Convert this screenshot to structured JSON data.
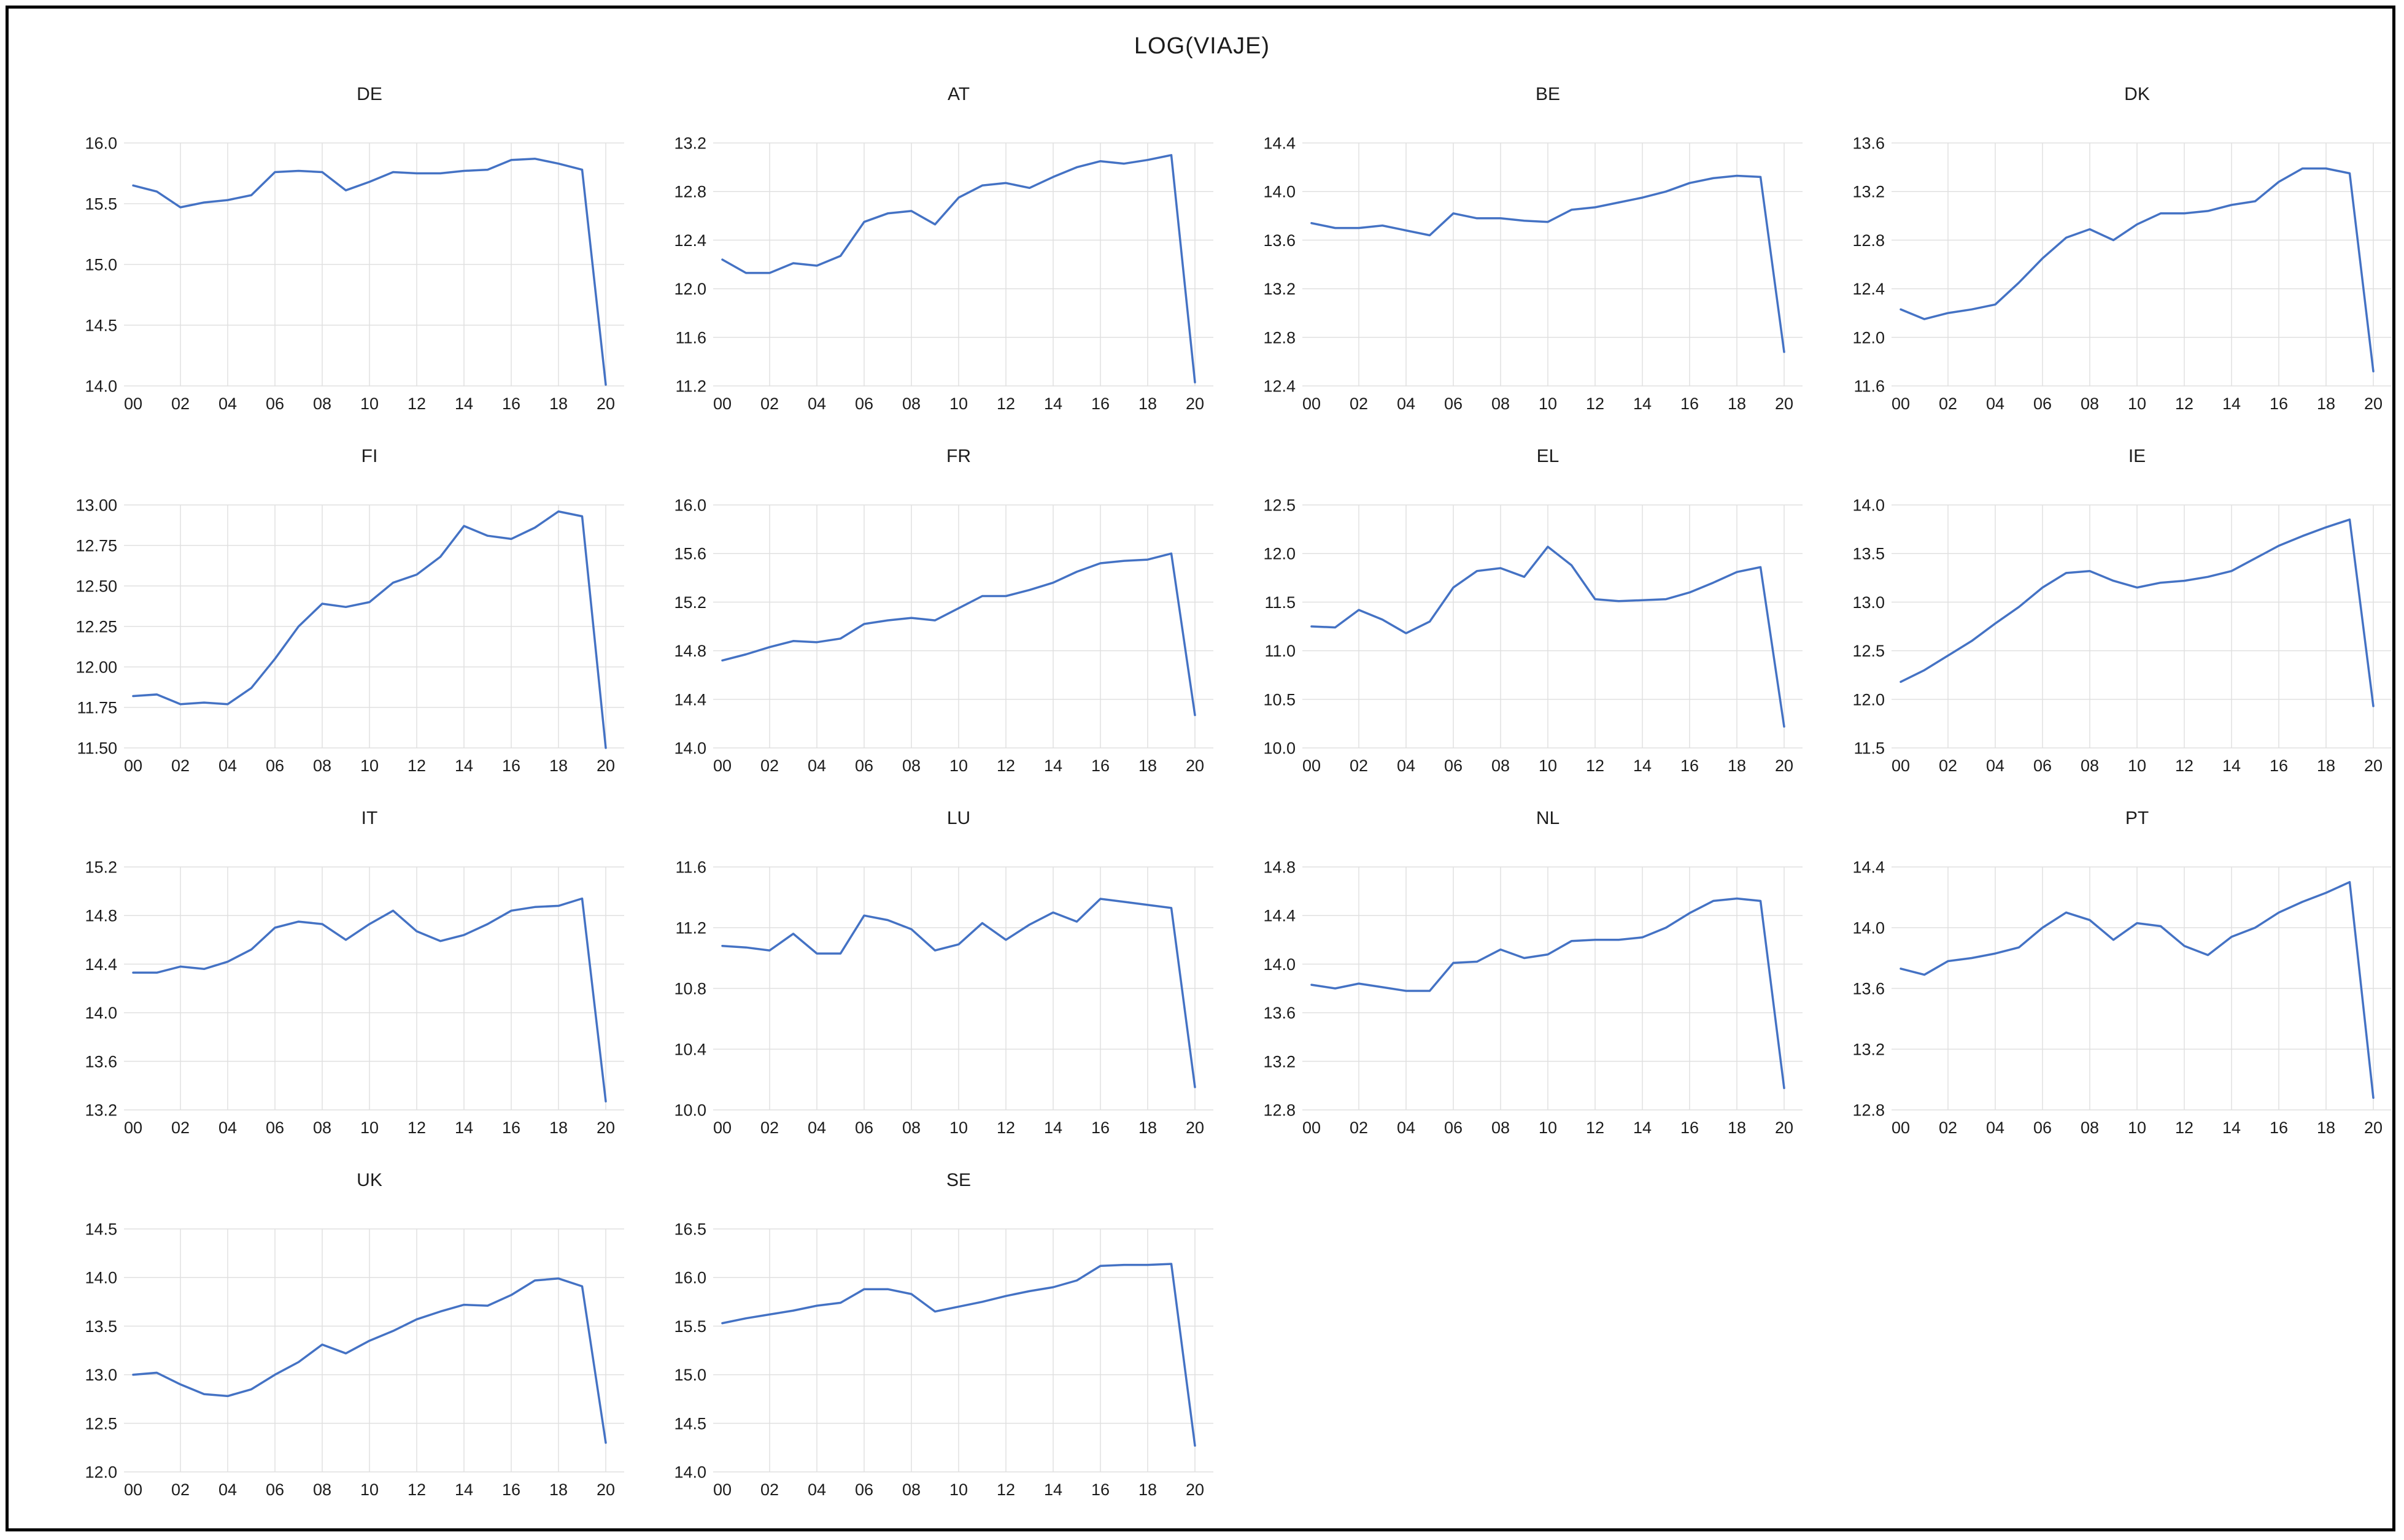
{
  "figure": {
    "title": "LOG(VIAJE)"
  },
  "colors": {
    "line": "#4472c4",
    "grid": "#e0e0e0",
    "text": "#1c1c1c",
    "background": "#ffffff",
    "border": "#000000"
  },
  "x_tick_labels": [
    "00",
    "02",
    "04",
    "06",
    "08",
    "10",
    "12",
    "14",
    "16",
    "18",
    "20"
  ],
  "chart_data": [
    {
      "type": "line",
      "title": "DE",
      "ylim": [
        14.0,
        16.0
      ],
      "yticks": [
        16.0,
        15.5,
        15.0,
        14.5,
        14.0
      ],
      "ytick_labels": [
        "16.0",
        "15.5",
        "15.0",
        "14.5",
        "14.0"
      ],
      "x_start_year": 2000,
      "x_end_year": 2020,
      "values": [
        15.65,
        15.6,
        15.47,
        15.51,
        15.53,
        15.57,
        15.76,
        15.77,
        15.76,
        15.61,
        15.68,
        15.76,
        15.75,
        15.75,
        15.77,
        15.78,
        15.86,
        15.87,
        15.83,
        15.78,
        14.01
      ]
    },
    {
      "type": "line",
      "title": "AT",
      "ylim": [
        11.2,
        13.2
      ],
      "yticks": [
        13.2,
        12.8,
        12.4,
        12.0,
        11.6,
        11.2
      ],
      "ytick_labels": [
        "13.2",
        "12.8",
        "12.4",
        "12.0",
        "11.6",
        "11.2"
      ],
      "x_start_year": 2000,
      "x_end_year": 2020,
      "values": [
        12.24,
        12.13,
        12.13,
        12.21,
        12.19,
        12.27,
        12.55,
        12.62,
        12.64,
        12.53,
        12.75,
        12.85,
        12.87,
        12.83,
        12.92,
        13.0,
        13.05,
        13.03,
        13.06,
        13.1,
        11.23
      ]
    },
    {
      "type": "line",
      "title": "BE",
      "ylim": [
        12.4,
        14.4
      ],
      "yticks": [
        14.4,
        14.0,
        13.6,
        13.2,
        12.8,
        12.4
      ],
      "ytick_labels": [
        "14.4",
        "14.0",
        "13.6",
        "13.2",
        "12.8",
        "12.4"
      ],
      "x_start_year": 2000,
      "x_end_year": 2020,
      "values": [
        13.74,
        13.7,
        13.7,
        13.72,
        13.68,
        13.64,
        13.82,
        13.78,
        13.78,
        13.76,
        13.75,
        13.85,
        13.87,
        13.91,
        13.95,
        14.0,
        14.07,
        14.11,
        14.13,
        14.12,
        12.68
      ]
    },
    {
      "type": "line",
      "title": "DK",
      "ylim": [
        11.6,
        13.6
      ],
      "yticks": [
        13.6,
        13.2,
        12.8,
        12.4,
        12.0,
        11.6
      ],
      "ytick_labels": [
        "13.6",
        "13.2",
        "12.8",
        "12.4",
        "12.0",
        "11.6"
      ],
      "x_start_year": 2000,
      "x_end_year": 2020,
      "values": [
        12.23,
        12.15,
        12.2,
        12.23,
        12.27,
        12.45,
        12.65,
        12.82,
        12.89,
        12.8,
        12.93,
        13.02,
        13.02,
        13.04,
        13.09,
        13.12,
        13.28,
        13.39,
        13.39,
        13.35,
        11.72
      ]
    },
    {
      "type": "line",
      "title": "FI",
      "ylim": [
        11.5,
        13.0
      ],
      "yticks": [
        13.0,
        12.75,
        12.5,
        12.25,
        12.0,
        11.75,
        11.5
      ],
      "ytick_labels": [
        "13.00",
        "12.75",
        "12.50",
        "12.25",
        "12.00",
        "11.75",
        "11.50"
      ],
      "x_start_year": 2000,
      "x_end_year": 2020,
      "values": [
        11.82,
        11.83,
        11.77,
        11.78,
        11.77,
        11.87,
        12.05,
        12.25,
        12.39,
        12.37,
        12.4,
        12.52,
        12.57,
        12.68,
        12.87,
        12.81,
        12.79,
        12.86,
        12.96,
        12.93,
        11.5
      ]
    },
    {
      "type": "line",
      "title": "FR",
      "ylim": [
        14.0,
        16.0
      ],
      "yticks": [
        16.0,
        15.6,
        15.2,
        14.8,
        14.4,
        14.0
      ],
      "ytick_labels": [
        "16.0",
        "15.6",
        "15.2",
        "14.8",
        "14.4",
        "14.0"
      ],
      "x_start_year": 2000,
      "x_end_year": 2020,
      "values": [
        14.72,
        14.77,
        14.83,
        14.88,
        14.87,
        14.9,
        15.02,
        15.05,
        15.07,
        15.05,
        15.15,
        15.25,
        15.25,
        15.3,
        15.36,
        15.45,
        15.52,
        15.54,
        15.55,
        15.6,
        14.27
      ]
    },
    {
      "type": "line",
      "title": "EL",
      "ylim": [
        10.0,
        12.5
      ],
      "yticks": [
        12.5,
        12.0,
        11.5,
        11.0,
        10.5,
        10.0
      ],
      "ytick_labels": [
        "12.5",
        "12.0",
        "11.5",
        "11.0",
        "10.5",
        "10.0"
      ],
      "x_start_year": 2000,
      "x_end_year": 2020,
      "values": [
        11.25,
        11.24,
        11.42,
        11.32,
        11.18,
        11.3,
        11.65,
        11.82,
        11.85,
        11.76,
        12.07,
        11.88,
        11.53,
        11.51,
        11.52,
        11.53,
        11.6,
        11.7,
        11.81,
        11.86,
        10.22
      ]
    },
    {
      "type": "line",
      "title": "IE",
      "ylim": [
        11.5,
        14.0
      ],
      "yticks": [
        14.0,
        13.5,
        13.0,
        12.5,
        12.0,
        11.5
      ],
      "ytick_labels": [
        "14.0",
        "13.5",
        "13.0",
        "12.5",
        "12.0",
        "11.5"
      ],
      "x_start_year": 2000,
      "x_end_year": 2020,
      "values": [
        12.18,
        12.3,
        12.45,
        12.6,
        12.78,
        12.95,
        13.15,
        13.3,
        13.32,
        13.22,
        13.15,
        13.2,
        13.22,
        13.26,
        13.32,
        13.45,
        13.58,
        13.68,
        13.77,
        13.85,
        11.93
      ]
    },
    {
      "type": "line",
      "title": "IT",
      "ylim": [
        13.2,
        15.2
      ],
      "yticks": [
        15.2,
        14.8,
        14.4,
        14.0,
        13.6,
        13.2
      ],
      "ytick_labels": [
        "15.2",
        "14.8",
        "14.4",
        "14.0",
        "13.6",
        "13.2"
      ],
      "x_start_year": 2000,
      "x_end_year": 2020,
      "values": [
        14.33,
        14.33,
        14.38,
        14.36,
        14.42,
        14.52,
        14.7,
        14.75,
        14.73,
        14.6,
        14.73,
        14.84,
        14.67,
        14.59,
        14.64,
        14.73,
        14.84,
        14.87,
        14.88,
        14.94,
        13.27
      ]
    },
    {
      "type": "line",
      "title": "LU",
      "ylim": [
        10.0,
        11.6
      ],
      "yticks": [
        11.6,
        11.2,
        10.8,
        10.4,
        10.0
      ],
      "ytick_labels": [
        "11.6",
        "11.2",
        "10.8",
        "10.4",
        "10.0"
      ],
      "x_start_year": 2000,
      "x_end_year": 2020,
      "values": [
        11.08,
        11.07,
        11.05,
        11.16,
        11.03,
        11.03,
        11.28,
        11.25,
        11.19,
        11.05,
        11.09,
        11.23,
        11.12,
        11.22,
        11.3,
        11.24,
        11.39,
        11.37,
        11.35,
        11.33,
        10.15
      ]
    },
    {
      "type": "line",
      "title": "NL",
      "ylim": [
        12.8,
        14.8
      ],
      "yticks": [
        14.8,
        14.4,
        14.0,
        13.6,
        13.2,
        12.8
      ],
      "ytick_labels": [
        "14.8",
        "14.4",
        "14.0",
        "13.6",
        "13.2",
        "12.8"
      ],
      "x_start_year": 2000,
      "x_end_year": 2020,
      "values": [
        13.83,
        13.8,
        13.84,
        13.81,
        13.78,
        13.78,
        14.01,
        14.02,
        14.12,
        14.05,
        14.08,
        14.19,
        14.2,
        14.2,
        14.22,
        14.3,
        14.42,
        14.52,
        14.54,
        14.52,
        12.98
      ]
    },
    {
      "type": "line",
      "title": "PT",
      "ylim": [
        12.8,
        14.4
      ],
      "yticks": [
        14.4,
        14.0,
        13.6,
        13.2,
        12.8
      ],
      "ytick_labels": [
        "14.4",
        "14.0",
        "13.6",
        "13.2",
        "12.8"
      ],
      "x_start_year": 2000,
      "x_end_year": 2020,
      "values": [
        13.73,
        13.69,
        13.78,
        13.8,
        13.83,
        13.87,
        14.0,
        14.1,
        14.05,
        13.92,
        14.03,
        14.01,
        13.88,
        13.82,
        13.94,
        14.0,
        14.1,
        14.17,
        14.23,
        14.3,
        12.88
      ]
    },
    {
      "type": "line",
      "title": "UK",
      "ylim": [
        12.0,
        14.5
      ],
      "yticks": [
        14.5,
        14.0,
        13.5,
        13.0,
        12.5,
        12.0
      ],
      "ytick_labels": [
        "14.5",
        "14.0",
        "13.5",
        "13.0",
        "12.5",
        "12.0"
      ],
      "x_start_year": 2000,
      "x_end_year": 2020,
      "values": [
        13.0,
        13.02,
        12.9,
        12.8,
        12.78,
        12.85,
        13.0,
        13.13,
        13.31,
        13.22,
        13.35,
        13.45,
        13.57,
        13.65,
        13.72,
        13.71,
        13.82,
        13.97,
        13.99,
        13.91,
        12.3
      ]
    },
    {
      "type": "line",
      "title": "SE",
      "ylim": [
        14.0,
        16.5
      ],
      "yticks": [
        16.5,
        16.0,
        15.5,
        15.0,
        14.5,
        14.0
      ],
      "ytick_labels": [
        "16.5",
        "16.0",
        "15.5",
        "15.0",
        "14.5",
        "14.0"
      ],
      "x_start_year": 2000,
      "x_end_year": 2020,
      "values": [
        15.53,
        15.58,
        15.62,
        15.66,
        15.71,
        15.74,
        15.88,
        15.88,
        15.83,
        15.65,
        15.7,
        15.75,
        15.81,
        15.86,
        15.9,
        15.97,
        16.12,
        16.13,
        16.13,
        16.14,
        14.27
      ]
    }
  ]
}
